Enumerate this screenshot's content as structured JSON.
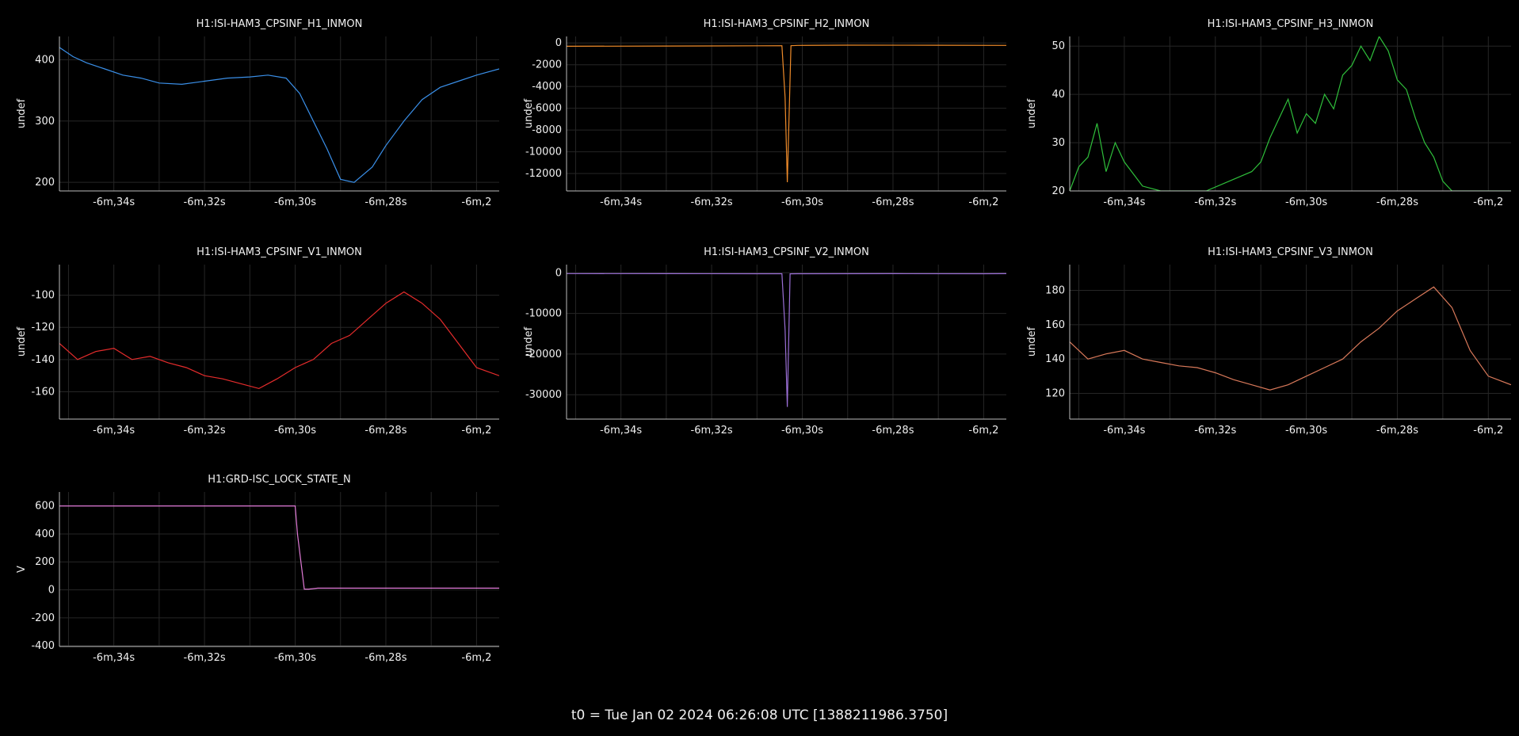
{
  "footer": "t0 = Tue Jan 02 2024 06:26:08 UTC [1388211986.3750]",
  "x_ticks": [
    "-6m,34s",
    "-6m,32s",
    "-6m,30s",
    "-6m,28s",
    "-6m,2"
  ],
  "chart_data": [
    {
      "type": "line",
      "title": "H1:ISI-HAM3_CPSINF_H1_INMON",
      "ylabel": "undef",
      "color": "#3a8fe8",
      "ylim": [
        186,
        438
      ],
      "yticks": [
        200,
        300,
        400
      ],
      "x": [
        -35.2,
        -34.9,
        -34.6,
        -34.2,
        -33.8,
        -33.4,
        -33.0,
        -32.5,
        -32.0,
        -31.5,
        -31.0,
        -30.6,
        -30.2,
        -29.9,
        -29.6,
        -29.3,
        -29.0,
        -28.7,
        -28.3,
        -28.0,
        -27.6,
        -27.2,
        -26.8,
        -26.4,
        -26.0,
        -25.5
      ],
      "values": [
        420,
        405,
        395,
        385,
        375,
        370,
        362,
        360,
        365,
        370,
        372,
        375,
        370,
        345,
        300,
        255,
        205,
        200,
        225,
        260,
        300,
        335,
        355,
        365,
        375,
        385
      ]
    },
    {
      "type": "line",
      "title": "H1:ISI-HAM3_CPSINF_H2_INMON",
      "ylabel": "undef",
      "color": "#f08c2a",
      "ylim": [
        -13600,
        600
      ],
      "yticks": [
        0,
        -2000,
        -4000,
        -6000,
        -8000,
        -10000,
        -12000
      ],
      "x": [
        -35.2,
        -33.0,
        -31.0,
        -30.45,
        -30.38,
        -30.33,
        -30.25,
        -30.1,
        -29.0,
        -27.0,
        -25.5
      ],
      "values": [
        -300,
        -280,
        -260,
        -250,
        -5000,
        -12800,
        -250,
        -220,
        -200,
        -210,
        -220
      ]
    },
    {
      "type": "line",
      "title": "H1:ISI-HAM3_CPSINF_H3_INMON",
      "ylabel": "undef",
      "color": "#2fbf3b",
      "ylim": [
        20,
        52
      ],
      "yticks": [
        20,
        30,
        40,
        50
      ],
      "x": [
        -35.2,
        -35.0,
        -34.8,
        -34.6,
        -34.4,
        -34.2,
        -34.0,
        -33.6,
        -33.2,
        -32.2,
        -31.2,
        -31.0,
        -30.8,
        -30.6,
        -30.4,
        -30.2,
        -30.0,
        -29.8,
        -29.6,
        -29.4,
        -29.2,
        -29.0,
        -28.8,
        -28.6,
        -28.4,
        -28.2,
        -28.0,
        -27.8,
        -27.6,
        -27.4,
        -27.2,
        -27.0,
        -26.8,
        -26.4,
        -26.0,
        -25.5
      ],
      "values": [
        20,
        25,
        27,
        34,
        24,
        30,
        26,
        21,
        20,
        20,
        24,
        26,
        31,
        35,
        39,
        32,
        36,
        34,
        40,
        37,
        44,
        46,
        50,
        47,
        52,
        49,
        43,
        41,
        35,
        30,
        27,
        22,
        20,
        20,
        20,
        20
      ]
    },
    {
      "type": "line",
      "title": "H1:ISI-HAM3_CPSINF_V1_INMON",
      "ylabel": "undef",
      "color": "#e62c2c",
      "ylim": [
        -177,
        -81
      ],
      "yticks": [
        -100,
        -120,
        -140,
        -160
      ],
      "x": [
        -35.2,
        -34.8,
        -34.4,
        -34.0,
        -33.6,
        -33.2,
        -32.8,
        -32.4,
        -32.0,
        -31.6,
        -31.2,
        -30.8,
        -30.4,
        -30.0,
        -29.6,
        -29.2,
        -28.8,
        -28.4,
        -28.0,
        -27.6,
        -27.2,
        -26.8,
        -26.4,
        -26.0,
        -25.5
      ],
      "values": [
        -130,
        -140,
        -135,
        -133,
        -140,
        -138,
        -142,
        -145,
        -150,
        -152,
        -155,
        -158,
        -152,
        -145,
        -140,
        -130,
        -125,
        -115,
        -105,
        -98,
        -105,
        -115,
        -130,
        -145,
        -150
      ]
    },
    {
      "type": "line",
      "title": "H1:ISI-HAM3_CPSINF_V2_INMON",
      "ylabel": "undef",
      "color": "#9b6fd6",
      "ylim": [
        -36000,
        2000
      ],
      "yticks": [
        0,
        -10000,
        -20000,
        -30000
      ],
      "x": [
        -35.2,
        -33.0,
        -31.0,
        -30.45,
        -30.38,
        -30.33,
        -30.27,
        -30.1,
        -28.0,
        -26.0,
        -25.5
      ],
      "values": [
        -200,
        -220,
        -240,
        -250,
        -14000,
        -33000,
        -260,
        -240,
        -230,
        -240,
        -230
      ]
    },
    {
      "type": "line",
      "title": "H1:ISI-HAM3_CPSINF_V3_INMON",
      "ylabel": "undef",
      "color": "#d9795a",
      "ylim": [
        105,
        195
      ],
      "yticks": [
        120,
        140,
        160,
        180
      ],
      "x": [
        -35.2,
        -34.8,
        -34.4,
        -34.0,
        -33.6,
        -33.2,
        -32.8,
        -32.4,
        -32.0,
        -31.6,
        -31.2,
        -30.8,
        -30.4,
        -30.0,
        -29.6,
        -29.2,
        -28.8,
        -28.4,
        -28.0,
        -27.6,
        -27.2,
        -26.8,
        -26.4,
        -26.0,
        -25.5
      ],
      "values": [
        150,
        140,
        143,
        145,
        140,
        138,
        136,
        135,
        132,
        128,
        125,
        122,
        125,
        130,
        135,
        140,
        150,
        158,
        168,
        175,
        182,
        170,
        145,
        130,
        125
      ]
    },
    {
      "type": "line",
      "title": "H1:GRD-ISC_LOCK_STATE_N",
      "ylabel": "V",
      "color": "#e07ad6",
      "ylim": [
        -405,
        700
      ],
      "yticks": [
        600,
        400,
        200,
        0,
        -200,
        -400
      ],
      "x": [
        -35.2,
        -30.0,
        -29.95,
        -29.8,
        -29.7,
        -29.5,
        -25.5
      ],
      "values": [
        600,
        600,
        400,
        5,
        5,
        12,
        12
      ]
    }
  ]
}
